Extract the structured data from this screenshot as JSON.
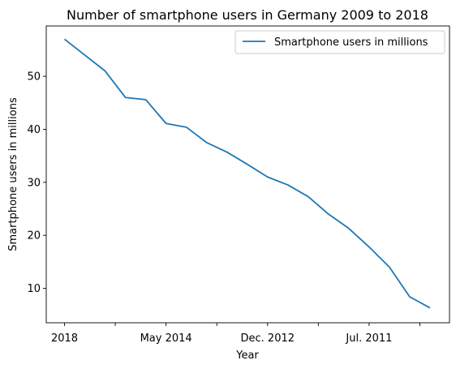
{
  "chart_data": {
    "type": "line",
    "title": "Number of smartphone users in Germany 2009 to 2018",
    "xlabel": "Year",
    "ylabel": "Smartphone users in millions",
    "ylim": [
      3.5,
      59.5
    ],
    "yticks": [
      10,
      20,
      30,
      40,
      50
    ],
    "grid": false,
    "legend_position": "top-right",
    "x_tick_labels": [
      {
        "index": 0,
        "label": "2018"
      },
      {
        "index": 5,
        "label": "May 2014"
      },
      {
        "index": 10,
        "label": "Dec. 2012"
      },
      {
        "index": 15,
        "label": "Jul. 2011"
      }
    ],
    "x_minor_ticks": [
      2.5,
      7.5,
      12.5,
      17.5
    ],
    "series": [
      {
        "name": "Smartphone users in millions",
        "color": "#1f77b4",
        "values": [
          57,
          54,
          51,
          46,
          45.6,
          41.1,
          40.4,
          37.5,
          35.7,
          33.4,
          31,
          29.5,
          27.3,
          24,
          21.3,
          17.8,
          14,
          8.4,
          6.3
        ]
      }
    ]
  }
}
